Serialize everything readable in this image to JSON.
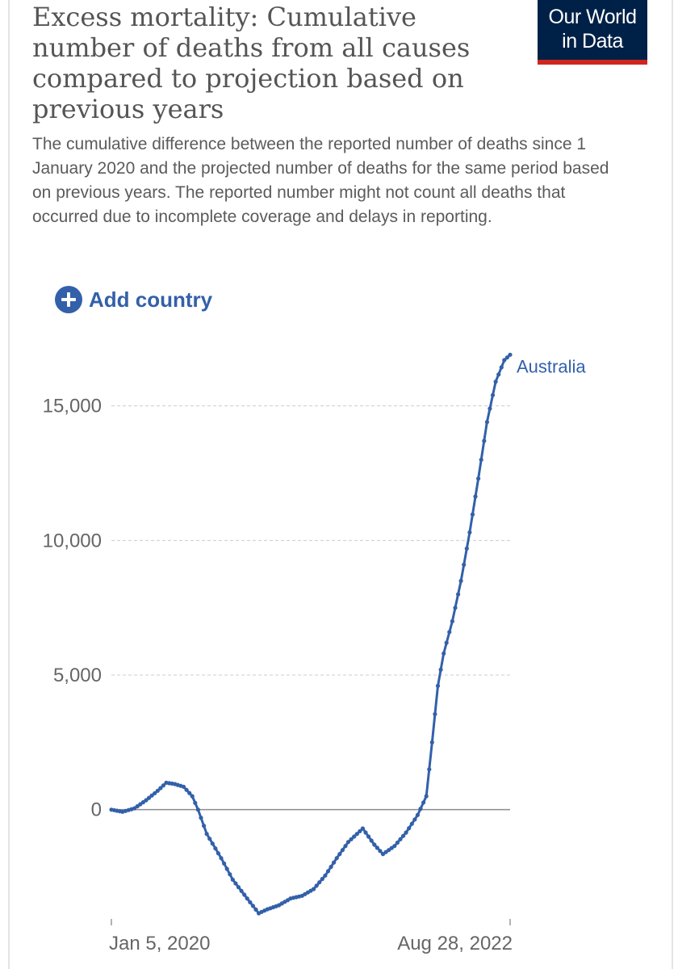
{
  "title": "Excess mortality: Cumulative number of deaths from all causes compared to projection based on previous years",
  "subtitle": "The cumulative difference between the reported number of deaths since 1 January 2020 and the projected number of deaths for the same period based on previous years. The reported number might not count all deaths that occurred due to incomplete coverage and delays in reporting.",
  "logo": {
    "line1": "Our World",
    "line2": "in Data"
  },
  "add_country": {
    "label": "Add country",
    "icon": "plus-circle-icon"
  },
  "colors": {
    "series": "#3360a9",
    "logo_bg": "#002147",
    "logo_accent": "#ce261e",
    "grid": "#cccccc"
  },
  "chart_data": {
    "type": "line",
    "title": "Excess mortality: Cumulative number of deaths from all causes compared to projection based on previous years",
    "xlabel": "",
    "ylabel": "",
    "x_tick_labels": [
      "Jan 5, 2020",
      "Aug 28, 2022"
    ],
    "x_range": [
      "2020-01-05",
      "2022-08-28"
    ],
    "y_ticks": [
      0,
      5000,
      10000,
      15000
    ],
    "y_tick_labels": [
      "0",
      "5,000",
      "10,000",
      "15,000"
    ],
    "ylim": [
      -4000,
      17000
    ],
    "grid": true,
    "series": [
      {
        "name": "Australia",
        "points": [
          [
            "2020-01-05",
            0
          ],
          [
            "2020-02-01",
            -80
          ],
          [
            "2020-03-01",
            50
          ],
          [
            "2020-03-29",
            350
          ],
          [
            "2020-04-26",
            700
          ],
          [
            "2020-05-17",
            1000
          ],
          [
            "2020-06-07",
            950
          ],
          [
            "2020-06-28",
            850
          ],
          [
            "2020-07-19",
            500
          ],
          [
            "2020-08-02",
            0
          ],
          [
            "2020-08-23",
            -900
          ],
          [
            "2020-09-27",
            -1800
          ],
          [
            "2020-10-25",
            -2600
          ],
          [
            "2020-11-29",
            -3300
          ],
          [
            "2020-12-27",
            -3850
          ],
          [
            "2021-01-17",
            -3700
          ],
          [
            "2021-02-14",
            -3550
          ],
          [
            "2021-03-14",
            -3300
          ],
          [
            "2021-04-11",
            -3200
          ],
          [
            "2021-05-09",
            -2950
          ],
          [
            "2021-06-06",
            -2450
          ],
          [
            "2021-07-04",
            -1800
          ],
          [
            "2021-08-01",
            -1200
          ],
          [
            "2021-09-05",
            -700
          ],
          [
            "2021-10-03",
            -1300
          ],
          [
            "2021-10-24",
            -1650
          ],
          [
            "2021-11-21",
            -1350
          ],
          [
            "2021-12-19",
            -850
          ],
          [
            "2022-01-16",
            -200
          ],
          [
            "2022-02-06",
            500
          ],
          [
            "2022-02-20",
            2500
          ],
          [
            "2022-03-06",
            4600
          ],
          [
            "2022-03-20",
            5800
          ],
          [
            "2022-04-10",
            7000
          ],
          [
            "2022-05-01",
            8500
          ],
          [
            "2022-05-22",
            10300
          ],
          [
            "2022-06-12",
            12300
          ],
          [
            "2022-07-03",
            14400
          ],
          [
            "2022-07-24",
            15900
          ],
          [
            "2022-08-14",
            16700
          ],
          [
            "2022-08-28",
            16900
          ]
        ]
      }
    ]
  }
}
